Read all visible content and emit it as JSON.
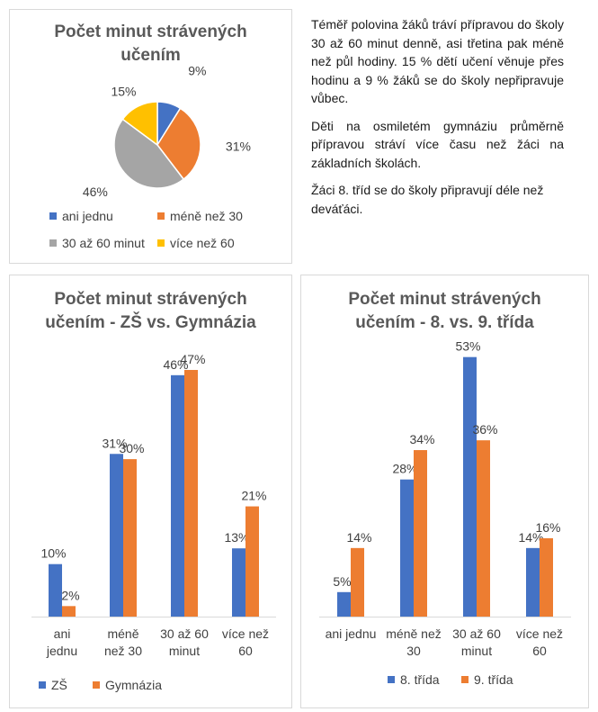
{
  "paragraphs": [
    "Téměř polovina žáků tráví přípravou do školy 30 až 60 minut denně, asi třetina pak méně než půl hodiny. 15 % dětí učení věnuje přes hodinu a 9 % žáků se do školy nepřipravuje vůbec.",
    "Děti na osmiletém gymnáziu průměrně přípravou stráví více času než žáci na základních školách.",
    "Žáci 8. tříd se  do školy připravují déle než deváťáci."
  ],
  "colors": {
    "blue": "#4472c4",
    "orange": "#ed7d31",
    "gray": "#a5a5a5",
    "yellow": "#ffc000"
  },
  "chart_data": [
    {
      "type": "pie",
      "title": "Počet minut strávených učením",
      "title_lines": [
        "Počet minut strávených",
        "učením"
      ],
      "categories": [
        "ani jednu",
        "méně než 30",
        "30 až 60 minut",
        "více než 60"
      ],
      "values": [
        9,
        31,
        46,
        15
      ],
      "labels": [
        "9%",
        "31%",
        "46%",
        "15%"
      ],
      "colors": [
        "#4472c4",
        "#ed7d31",
        "#a5a5a5",
        "#ffc000"
      ],
      "legend_position": "bottom"
    },
    {
      "type": "bar",
      "title": "Počet minut strávených učením - ZŠ vs. Gymnázia",
      "title_lines": [
        "Počet minut strávených",
        "učením - ZŠ vs. Gymnázia"
      ],
      "categories": [
        [
          "ani",
          "jednu"
        ],
        [
          "méně",
          "než 30"
        ],
        [
          "30 až 60",
          "minut"
        ],
        [
          "více než",
          "60"
        ]
      ],
      "series": [
        {
          "name": "ZŠ",
          "values": [
            10,
            31,
            46,
            13
          ],
          "labels": [
            "10%",
            "31%",
            "46%",
            "13%"
          ],
          "color": "#4472c4"
        },
        {
          "name": "Gymnázia",
          "values": [
            2,
            30,
            47,
            21
          ],
          "labels": [
            "2%",
            "30%",
            "47%",
            "21%"
          ],
          "color": "#ed7d31"
        }
      ],
      "ylim": [
        0,
        50
      ],
      "grid": false,
      "legend_position": "bottom"
    },
    {
      "type": "bar",
      "title": "Počet minut strávených učením - 8. vs. 9. třída",
      "title_lines": [
        "Počet minut strávených",
        "učením - 8. vs. 9. třída"
      ],
      "categories": [
        [
          "ani jednu"
        ],
        [
          "méně než",
          "30"
        ],
        [
          "30 až 60",
          "minut"
        ],
        [
          "více než",
          "60"
        ]
      ],
      "series": [
        {
          "name": "8. třída",
          "values": [
            5,
            28,
            53,
            14
          ],
          "labels": [
            "5%",
            "28%",
            "53%",
            "14%"
          ],
          "color": "#4472c4"
        },
        {
          "name": "9. třída",
          "values": [
            14,
            34,
            36,
            16
          ],
          "labels": [
            "14%",
            "34%",
            "36%",
            "16%"
          ],
          "color": "#ed7d31"
        }
      ],
      "ylim": [
        0,
        55
      ],
      "grid": false,
      "legend_position": "bottom"
    }
  ]
}
